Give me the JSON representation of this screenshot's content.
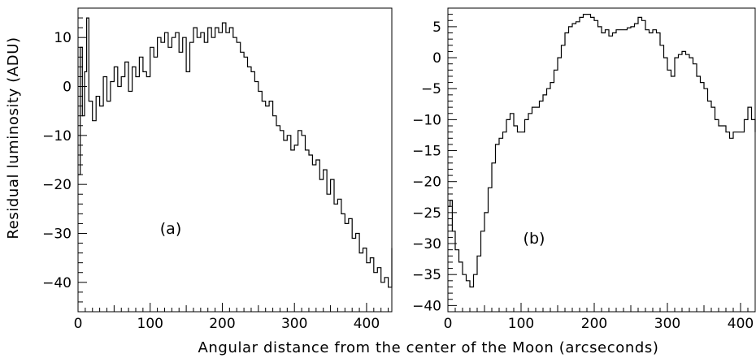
{
  "figure": {
    "ylabel": "Residual luminosity (ADU)",
    "xlabel": "Angular distance from the center of the Moon (arcseconds)"
  },
  "chart_data": [
    {
      "type": "line",
      "panel_label": "(a)",
      "xlim": [
        0,
        435
      ],
      "ylim": [
        -46,
        16
      ],
      "xticks": [
        0,
        100,
        200,
        300,
        400
      ],
      "yticks": [
        10,
        0,
        -10,
        -20,
        -30,
        -40
      ],
      "x_tick_labels": [
        "0",
        "100",
        "200",
        "300",
        "400"
      ],
      "y_tick_labels": [
        "10",
        "0",
        "−10",
        "−20",
        "−30",
        "−40"
      ],
      "step": true,
      "grid": false,
      "series": [
        {
          "x": [
            0,
            3,
            6,
            9,
            12,
            15,
            20,
            25,
            30,
            35,
            40,
            45,
            50,
            55,
            60,
            65,
            70,
            75,
            80,
            85,
            90,
            95,
            100,
            105,
            110,
            115,
            120,
            125,
            130,
            135,
            140,
            145,
            150,
            155,
            160,
            165,
            170,
            175,
            180,
            185,
            190,
            195,
            200,
            205,
            210,
            215,
            220,
            225,
            230,
            235,
            240,
            245,
            250,
            255,
            260,
            265,
            270,
            275,
            280,
            285,
            290,
            295,
            300,
            305,
            310,
            315,
            320,
            325,
            330,
            335,
            340,
            345,
            350,
            355,
            360,
            365,
            370,
            375,
            380,
            385,
            390,
            395,
            400,
            405,
            410,
            415,
            420,
            425,
            430,
            435
          ],
          "y": [
            -18,
            8,
            -6,
            3,
            14,
            -3,
            -7,
            -2,
            -4,
            2,
            -3,
            1,
            4,
            0,
            2,
            5,
            -1,
            4,
            2,
            6,
            3,
            2,
            8,
            6,
            10,
            9,
            11,
            8,
            10,
            11,
            7,
            10,
            3,
            9,
            12,
            10,
            11,
            9,
            12,
            10,
            12,
            11,
            13,
            11,
            12,
            10,
            9,
            7,
            6,
            4,
            3,
            1,
            -1,
            -3,
            -4,
            -3,
            -6,
            -8,
            -9,
            -11,
            -10,
            -13,
            -12,
            -9,
            -10,
            -13,
            -14,
            -16,
            -15,
            -19,
            -17,
            -22,
            -19,
            -24,
            -23,
            -26,
            -28,
            -27,
            -31,
            -30,
            -34,
            -33,
            -36,
            -35,
            -38,
            -37,
            -40,
            -39,
            -41,
            -33
          ]
        }
      ]
    },
    {
      "type": "line",
      "panel_label": "(b)",
      "xlim": [
        0,
        420
      ],
      "ylim": [
        -41,
        8
      ],
      "xticks": [
        0,
        100,
        200,
        300,
        400
      ],
      "yticks": [
        5,
        0,
        -5,
        -10,
        -15,
        -20,
        -25,
        -30,
        -35,
        -40
      ],
      "x_tick_labels": [
        "0",
        "100",
        "200",
        "300",
        "400"
      ],
      "y_tick_labels": [
        "5",
        "0",
        "−5",
        "−10",
        "−15",
        "−20",
        "−25",
        "−30",
        "−35",
        "−40"
      ],
      "step": true,
      "grid": false,
      "series": [
        {
          "x": [
            0,
            3,
            6,
            10,
            15,
            20,
            25,
            30,
            35,
            40,
            45,
            50,
            55,
            60,
            65,
            70,
            75,
            80,
            85,
            90,
            95,
            100,
            105,
            110,
            115,
            120,
            125,
            130,
            135,
            140,
            145,
            150,
            155,
            160,
            165,
            170,
            175,
            180,
            185,
            190,
            195,
            200,
            205,
            210,
            215,
            220,
            225,
            230,
            235,
            240,
            245,
            250,
            255,
            260,
            265,
            270,
            275,
            280,
            285,
            290,
            295,
            300,
            305,
            310,
            315,
            320,
            325,
            330,
            335,
            340,
            345,
            350,
            355,
            360,
            365,
            370,
            375,
            380,
            385,
            390,
            395,
            400,
            405,
            410,
            415,
            420
          ],
          "y": [
            -24,
            -23,
            -28,
            -31,
            -33,
            -35,
            -36,
            -37,
            -35,
            -32,
            -28,
            -25,
            -21,
            -17,
            -14,
            -13,
            -12,
            -10,
            -9,
            -11,
            -12,
            -12,
            -10,
            -9,
            -8,
            -8,
            -7,
            -6,
            -5,
            -4,
            -2,
            0,
            2,
            4,
            5,
            5.5,
            5.8,
            6.5,
            7,
            7,
            6.5,
            6,
            5,
            4,
            4.5,
            3.5,
            4,
            4.5,
            4.5,
            4.5,
            4.8,
            5,
            5.5,
            6.5,
            6,
            4.5,
            4,
            4.5,
            4,
            2,
            0,
            -2,
            -3,
            0,
            0.5,
            1,
            0.5,
            0,
            -1,
            -3,
            -4,
            -5,
            -7,
            -8,
            -10,
            -11,
            -11,
            -12,
            -13,
            -12,
            -12,
            -12,
            -10,
            -8,
            -10,
            -12
          ]
        }
      ]
    }
  ]
}
